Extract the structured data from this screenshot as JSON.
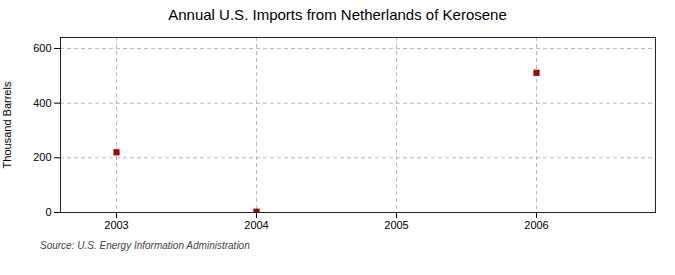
{
  "chart_data": {
    "type": "scatter",
    "title": "Annual U.S. Imports from Netherlands of Kerosene",
    "ylabel": "Thousand Barrels",
    "source": "Source: U.S. Energy Information Administration",
    "x": [
      2003,
      2004,
      2005,
      2006
    ],
    "values": [
      220,
      3,
      null,
      511
    ],
    "color": "#aa0000",
    "marker": "square",
    "xlim": [
      2002.6,
      2006.85
    ],
    "xticks": [
      2003,
      2004,
      2005,
      2006
    ],
    "ylim": [
      0,
      640
    ],
    "yticks": [
      0,
      200,
      400,
      600
    ],
    "grid": true
  }
}
